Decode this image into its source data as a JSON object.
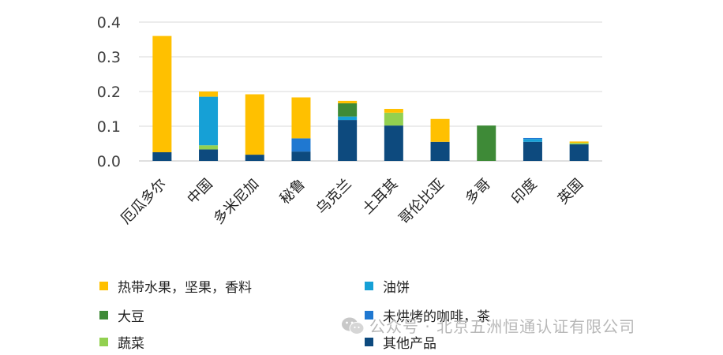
{
  "chart_data": {
    "type": "bar",
    "stacked": true,
    "categories": [
      "厄瓜多尔",
      "中国",
      "多米尼加",
      "秘鲁",
      "乌克兰",
      "土耳其",
      "哥伦比亚",
      "多哥",
      "印度",
      "英国"
    ],
    "series": [
      {
        "name": "其他产品",
        "color": "#0d4a7e",
        "values": [
          0.025,
          0.033,
          0.018,
          0.027,
          0.118,
          0.102,
          0.055,
          0.0,
          0.055,
          0.048
        ]
      },
      {
        "name": "蔬菜",
        "color": "#92d050",
        "values": [
          0.0,
          0.012,
          0.0,
          0.0,
          0.0,
          0.037,
          0.0,
          0.0,
          0.0,
          0.004
        ]
      },
      {
        "name": "油饼",
        "color": "#16a0d6",
        "values": [
          0.0,
          0.14,
          0.0,
          0.0,
          0.01,
          0.0,
          0.0,
          0.0,
          0.008,
          0.0
        ]
      },
      {
        "name": "未烘烤的咖啡，茶",
        "color": "#1f78d1",
        "values": [
          0.0,
          0.0,
          0.0,
          0.038,
          0.0,
          0.0,
          0.0,
          0.0,
          0.003,
          0.0
        ]
      },
      {
        "name": "大豆",
        "color": "#3e8a37",
        "values": [
          0.0,
          0.0,
          0.0,
          0.0,
          0.038,
          0.0,
          0.0,
          0.102,
          0.0,
          0.0
        ]
      },
      {
        "name": "热带水果，坚果，香料",
        "color": "#ffc000",
        "values": [
          0.335,
          0.015,
          0.174,
          0.118,
          0.007,
          0.011,
          0.066,
          0.0,
          0.0,
          0.004
        ]
      }
    ],
    "ylim": [
      0,
      0.4
    ],
    "yticks": [
      "0.0",
      "0.1",
      "0.2",
      "0.3",
      "0.4"
    ],
    "grid": true,
    "legend_position": "bottom"
  },
  "legend": {
    "items": [
      {
        "label": "热带水果，坚果，香料",
        "color": "#ffc000"
      },
      {
        "label": "油饼",
        "color": "#16a0d6"
      },
      {
        "label": "大豆",
        "color": "#3e8a37"
      },
      {
        "label": "未烘烤的咖啡，茶",
        "color": "#1f78d1"
      },
      {
        "label": "蔬菜",
        "color": "#92d050"
      },
      {
        "label": "其他产品",
        "color": "#0d4a7e"
      }
    ]
  },
  "watermark": {
    "icon": "wechat-icon",
    "text": "公众号 · 北京五洲恒通认证有限公司"
  }
}
